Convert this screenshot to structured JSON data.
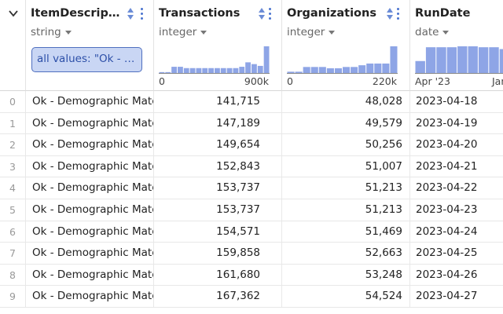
{
  "columns": [
    {
      "name": "ItemDescription",
      "type": "string",
      "filter": "all values: \"Ok - Demographic Match\""
    },
    {
      "name": "Transactions",
      "type": "integer",
      "hist_min": "0",
      "hist_max": "900k",
      "hist": [
        2,
        2,
        14,
        14,
        11,
        11,
        11,
        11,
        11,
        11,
        11,
        11,
        11,
        14,
        24,
        20,
        16,
        60
      ]
    },
    {
      "name": "Organizations",
      "type": "integer",
      "hist_min": "0",
      "hist_max": "220k",
      "hist": [
        3,
        3,
        14,
        14,
        14,
        11,
        11,
        14,
        14,
        18,
        22,
        22,
        22,
        62
      ]
    },
    {
      "name": "RunDate",
      "type": "date",
      "hist_min": "Apr '23",
      "hist_max": "Jan",
      "hist": [
        26,
        56,
        56,
        56,
        58,
        58,
        56,
        56,
        52,
        50
      ]
    }
  ],
  "rows": [
    {
      "index": "0",
      "desc": "Ok - Demographic Match",
      "transactions": "141,715",
      "organizations": "48,028",
      "rundate": "2023-04-18"
    },
    {
      "index": "1",
      "desc": "Ok - Demographic Match",
      "transactions": "147,189",
      "organizations": "49,579",
      "rundate": "2023-04-19"
    },
    {
      "index": "2",
      "desc": "Ok - Demographic Match",
      "transactions": "149,654",
      "organizations": "50,256",
      "rundate": "2023-04-20"
    },
    {
      "index": "3",
      "desc": "Ok - Demographic Match",
      "transactions": "152,843",
      "organizations": "51,007",
      "rundate": "2023-04-21"
    },
    {
      "index": "4",
      "desc": "Ok - Demographic Match",
      "transactions": "153,737",
      "organizations": "51,213",
      "rundate": "2023-04-22"
    },
    {
      "index": "5",
      "desc": "Ok - Demographic Match",
      "transactions": "153,737",
      "organizations": "51,213",
      "rundate": "2023-04-23"
    },
    {
      "index": "6",
      "desc": "Ok - Demographic Match",
      "transactions": "154,571",
      "organizations": "51,469",
      "rundate": "2023-04-24"
    },
    {
      "index": "7",
      "desc": "Ok - Demographic Match",
      "transactions": "159,858",
      "organizations": "52,663",
      "rundate": "2023-04-25"
    },
    {
      "index": "8",
      "desc": "Ok - Demographic Match",
      "transactions": "161,680",
      "organizations": "53,248",
      "rundate": "2023-04-26"
    },
    {
      "index": "9",
      "desc": "Ok - Demographic Match",
      "transactions": "167,362",
      "organizations": "54,524",
      "rundate": "2023-04-27"
    }
  ],
  "colors": {
    "accent": "#4a73cf",
    "hist_bar": "#8ea5e6",
    "filter_bg": "#c9d6f4"
  }
}
